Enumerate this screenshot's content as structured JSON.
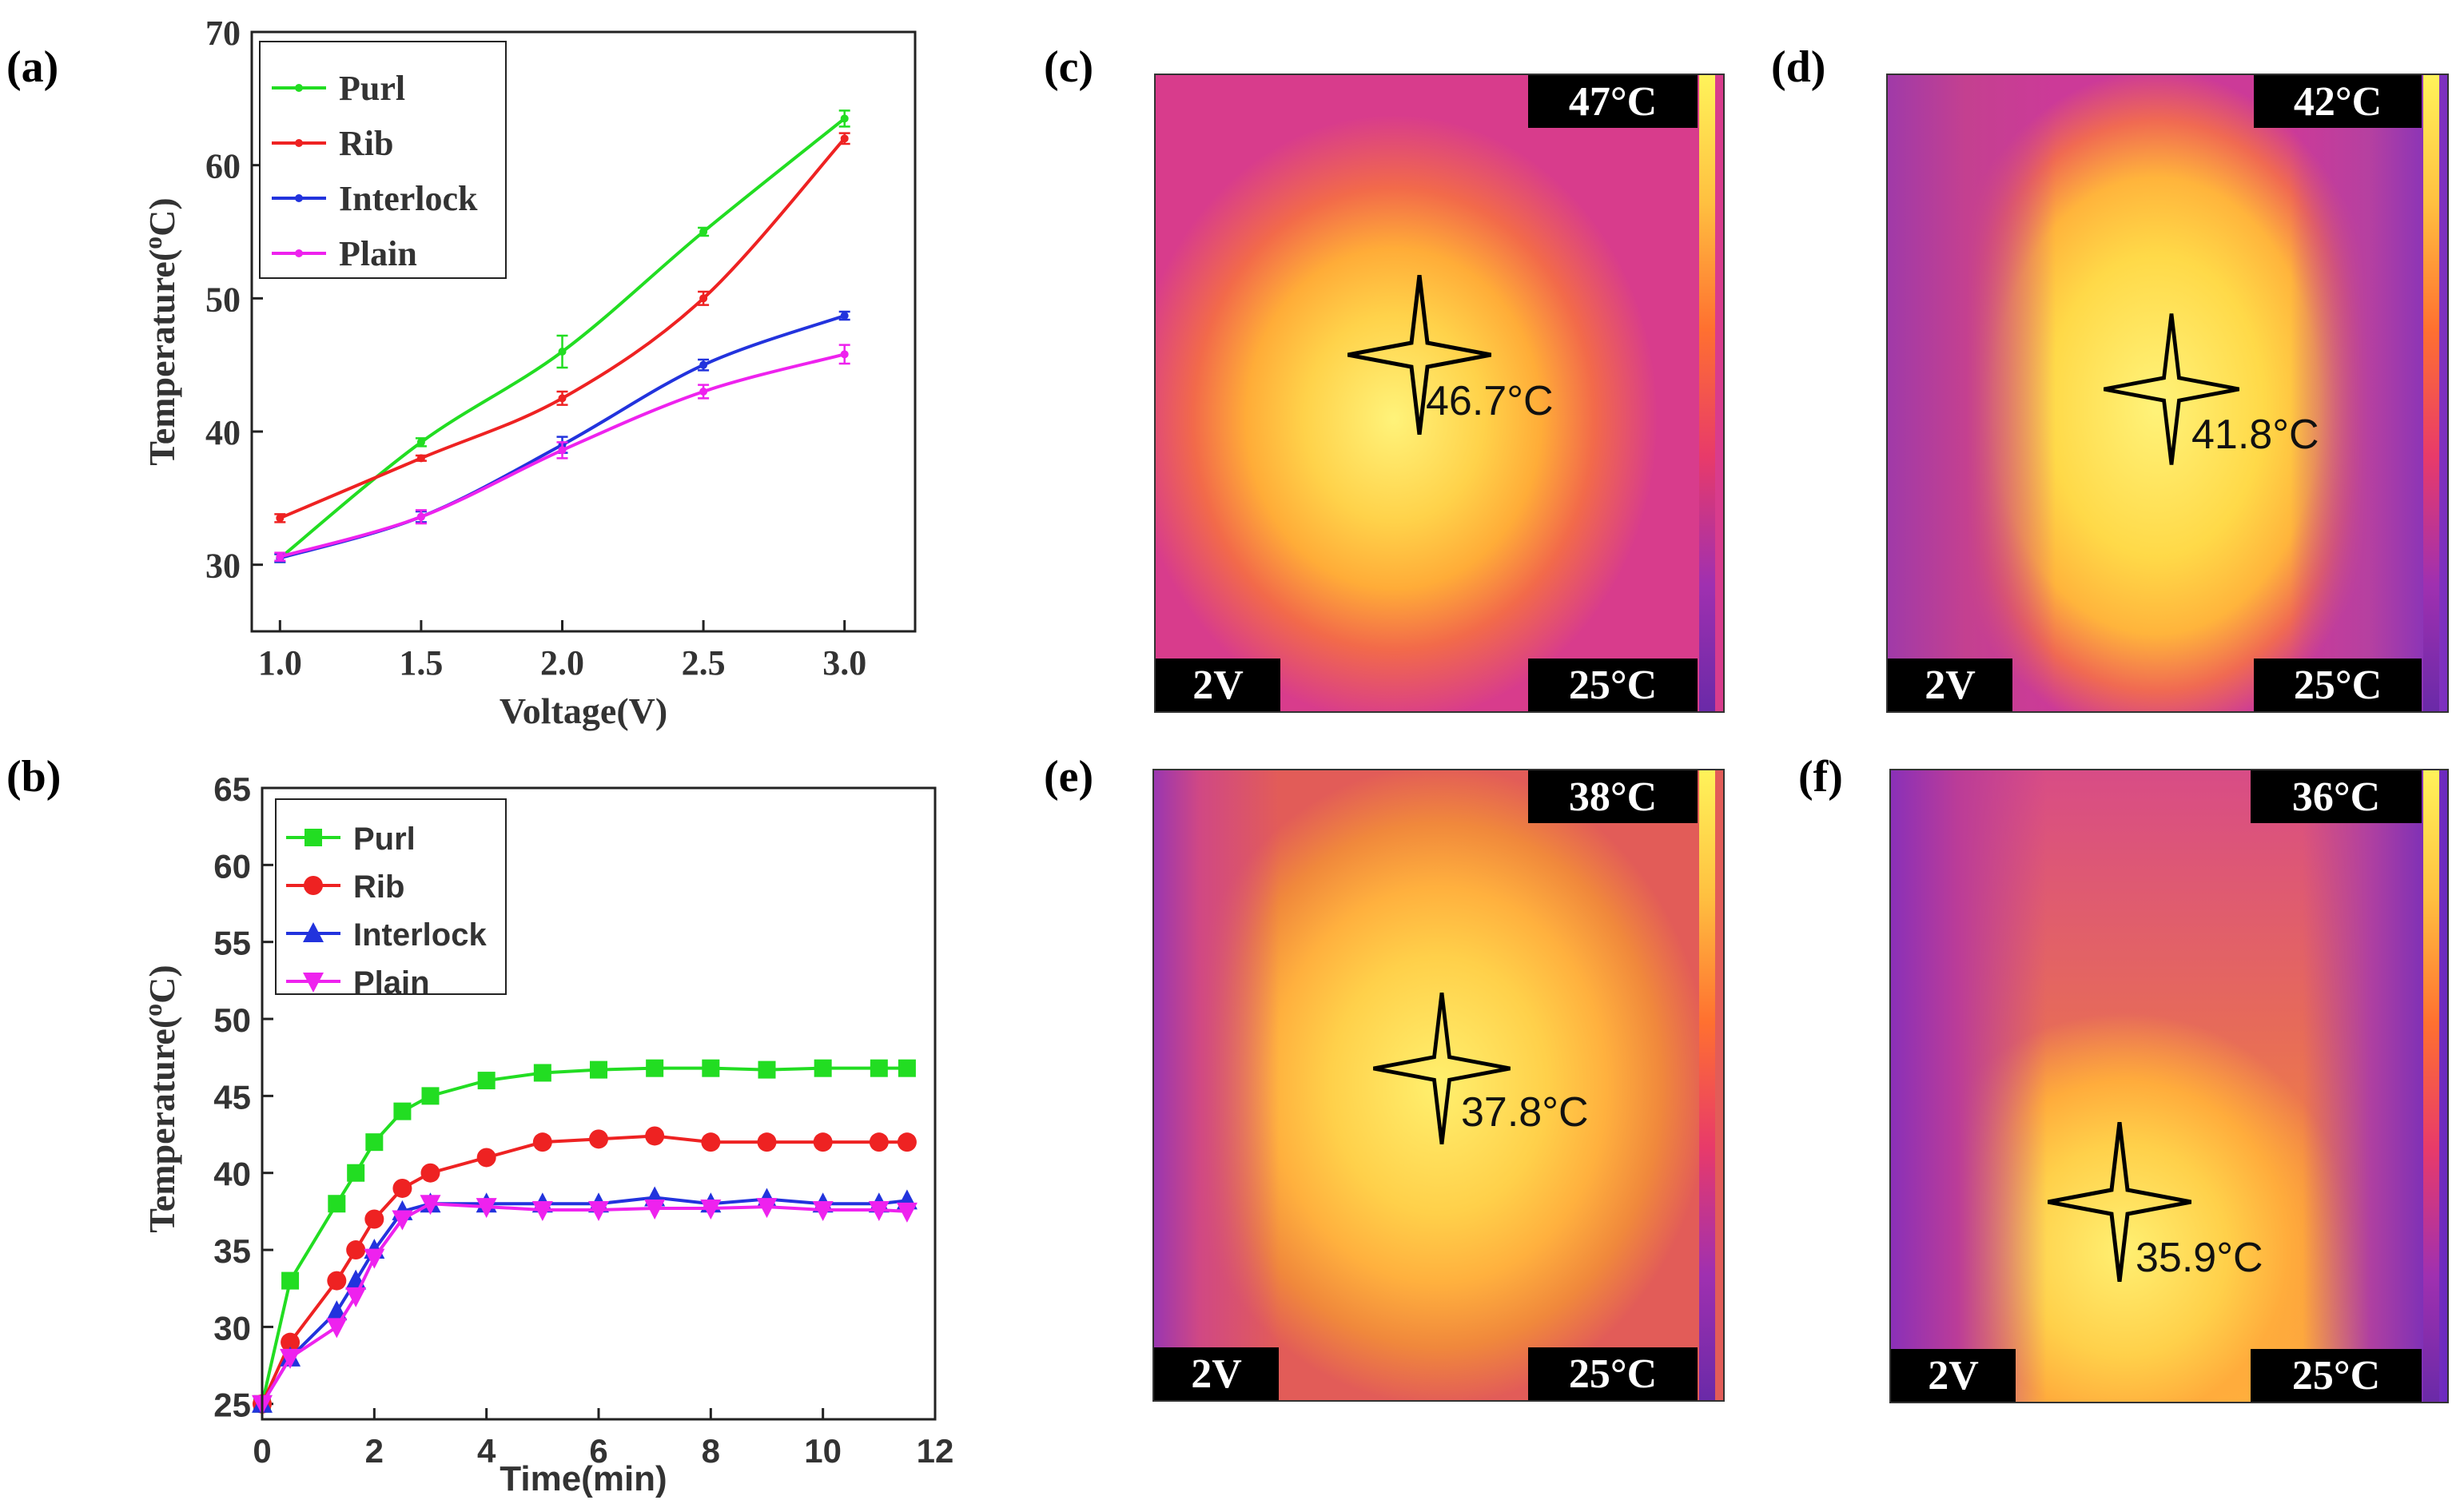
{
  "panels": {
    "a": "(a)",
    "b": "(b)",
    "c": "(c)",
    "d": "(d)",
    "e": "(e)",
    "f": "(f)"
  },
  "chart_data": [
    {
      "type": "line",
      "id": "a",
      "xlabel": "Voltage(V)",
      "ylabel": "Temperature(oC)",
      "ylabel_main": "Temperature(",
      "ylabel_sup": "o",
      "ylabel_end": "C)",
      "xlim": [
        0.9,
        3.25
      ],
      "ylim": [
        25,
        70
      ],
      "xticks": [
        "1.0",
        "1.5",
        "2.0",
        "2.5",
        "3.0"
      ],
      "xtick_values": [
        1.0,
        1.5,
        2.0,
        2.5,
        3.0
      ],
      "yticks": [
        "30",
        "40",
        "50",
        "60",
        "70"
      ],
      "ytick_values": [
        30,
        40,
        50,
        60,
        70
      ],
      "legend": "top-left",
      "x": [
        1.0,
        1.5,
        2.0,
        2.5,
        3.0
      ],
      "series": [
        {
          "name": "Purl",
          "color": "#22dd22",
          "values": [
            30.5,
            39.2,
            46.0,
            55.0,
            63.5
          ],
          "errors": [
            0.3,
            0.3,
            1.2,
            0.3,
            0.6
          ]
        },
        {
          "name": "Rib",
          "color": "#ee2222",
          "values": [
            33.5,
            38.0,
            42.5,
            50.0,
            62.0
          ],
          "errors": [
            0.3,
            0.2,
            0.5,
            0.5,
            0.4
          ]
        },
        {
          "name": "Interlock",
          "color": "#2233dd",
          "values": [
            30.5,
            33.6,
            39.0,
            45.0,
            48.7
          ],
          "errors": [
            0.3,
            0.4,
            0.6,
            0.4,
            0.3
          ]
        },
        {
          "name": "Plain",
          "color": "#ee22ee",
          "values": [
            30.6,
            33.6,
            38.6,
            43.0,
            45.8
          ],
          "errors": [
            0.3,
            0.5,
            0.6,
            0.5,
            0.7
          ]
        }
      ]
    },
    {
      "type": "line",
      "id": "b",
      "xlabel": "Time(min)",
      "ylabel": "Temperature(oC)",
      "ylabel_main": "Temperature(",
      "ylabel_sup": "o",
      "ylabel_end": "C)",
      "xlim": [
        0,
        12
      ],
      "ylim": [
        24,
        65
      ],
      "xticks": [
        "0",
        "2",
        "4",
        "6",
        "8",
        "10",
        "12"
      ],
      "xtick_values": [
        0,
        2,
        4,
        6,
        8,
        10,
        12
      ],
      "yticks": [
        "25",
        "30",
        "35",
        "40",
        "45",
        "50",
        "55",
        "60",
        "65"
      ],
      "ytick_values": [
        25,
        30,
        35,
        40,
        45,
        50,
        55,
        60,
        65
      ],
      "legend": "top-left",
      "x": [
        0,
        0.5,
        1.33,
        1.67,
        2,
        2.5,
        3,
        4,
        5,
        6,
        7,
        8,
        9,
        10,
        11,
        11.5
      ],
      "series": [
        {
          "name": "Purl",
          "color": "#22dd22",
          "marker": "square",
          "values": [
            25,
            33,
            38,
            40,
            42,
            44,
            45,
            46,
            46.5,
            46.7,
            46.8,
            46.8,
            46.7,
            46.8,
            46.8,
            46.8
          ]
        },
        {
          "name": "Rib",
          "color": "#ee2222",
          "marker": "circle",
          "values": [
            25,
            29,
            33,
            35,
            37,
            39,
            40,
            41,
            42,
            42.2,
            42.4,
            42,
            42,
            42,
            42,
            42
          ]
        },
        {
          "name": "Interlock",
          "color": "#2233dd",
          "marker": "triangle-up",
          "values": [
            25,
            28,
            31,
            33,
            35,
            37.5,
            38,
            38,
            38,
            38,
            38.4,
            38,
            38.3,
            38,
            38,
            38.2
          ]
        },
        {
          "name": "Plain",
          "color": "#ee22ee",
          "marker": "triangle-down",
          "values": [
            25,
            28,
            30,
            32,
            34.5,
            37,
            38,
            37.8,
            37.6,
            37.6,
            37.7,
            37.7,
            37.8,
            37.6,
            37.6,
            37.5
          ]
        }
      ]
    }
  ],
  "thermal_images": [
    {
      "id": "c",
      "max": "47°C",
      "min": "25°C",
      "voltage": "2V",
      "reading": "46.7°C"
    },
    {
      "id": "d",
      "max": "42°C",
      "min": "25°C",
      "voltage": "2V",
      "reading": "41.8°C"
    },
    {
      "id": "e",
      "max": "38°C",
      "min": "25°C",
      "voltage": "2V",
      "reading": "37.8°C"
    },
    {
      "id": "f",
      "max": "36°C",
      "min": "25°C",
      "voltage": "2V",
      "reading": "35.9°C"
    }
  ]
}
